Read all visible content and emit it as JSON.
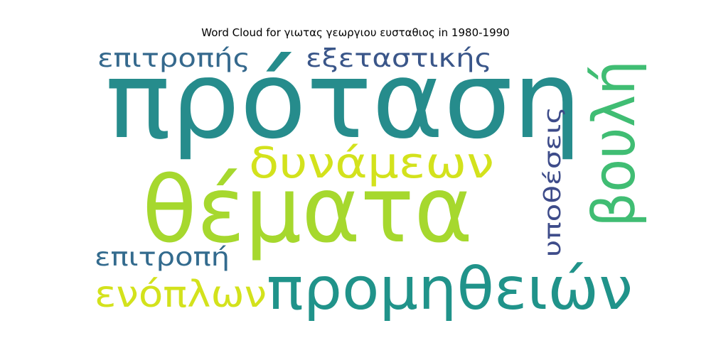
{
  "chart_data": {
    "type": "wordcloud",
    "title": "Word Cloud for γιωτας γεωργιου ευσταθιος in 1980-1990",
    "words": [
      {
        "text": "πρόταση",
        "weight": 1.0,
        "color": "#268c8c",
        "orientation": "horizontal"
      },
      {
        "text": "θέματα",
        "weight": 0.8,
        "color": "#a6d82e",
        "orientation": "horizontal"
      },
      {
        "text": "προμηθειών",
        "weight": 0.55,
        "color": "#20938a",
        "orientation": "horizontal"
      },
      {
        "text": "δυνάμεων",
        "weight": 0.42,
        "color": "#d3e21c",
        "orientation": "horizontal"
      },
      {
        "text": "βουλή",
        "weight": 0.48,
        "color": "#40bd73",
        "orientation": "vertical"
      },
      {
        "text": "ενόπλων",
        "weight": 0.35,
        "color": "#d3e21c",
        "orientation": "horizontal"
      },
      {
        "text": "επιτροπής",
        "weight": 0.25,
        "color": "#35698d",
        "orientation": "horizontal"
      },
      {
        "text": "εξεταστικής",
        "weight": 0.25,
        "color": "#3a5689",
        "orientation": "horizontal"
      },
      {
        "text": "επιτροπή",
        "weight": 0.25,
        "color": "#336b8e",
        "orientation": "horizontal"
      },
      {
        "text": "υποθέσεις",
        "weight": 0.22,
        "color": "#3e4c8a",
        "orientation": "vertical"
      }
    ]
  }
}
